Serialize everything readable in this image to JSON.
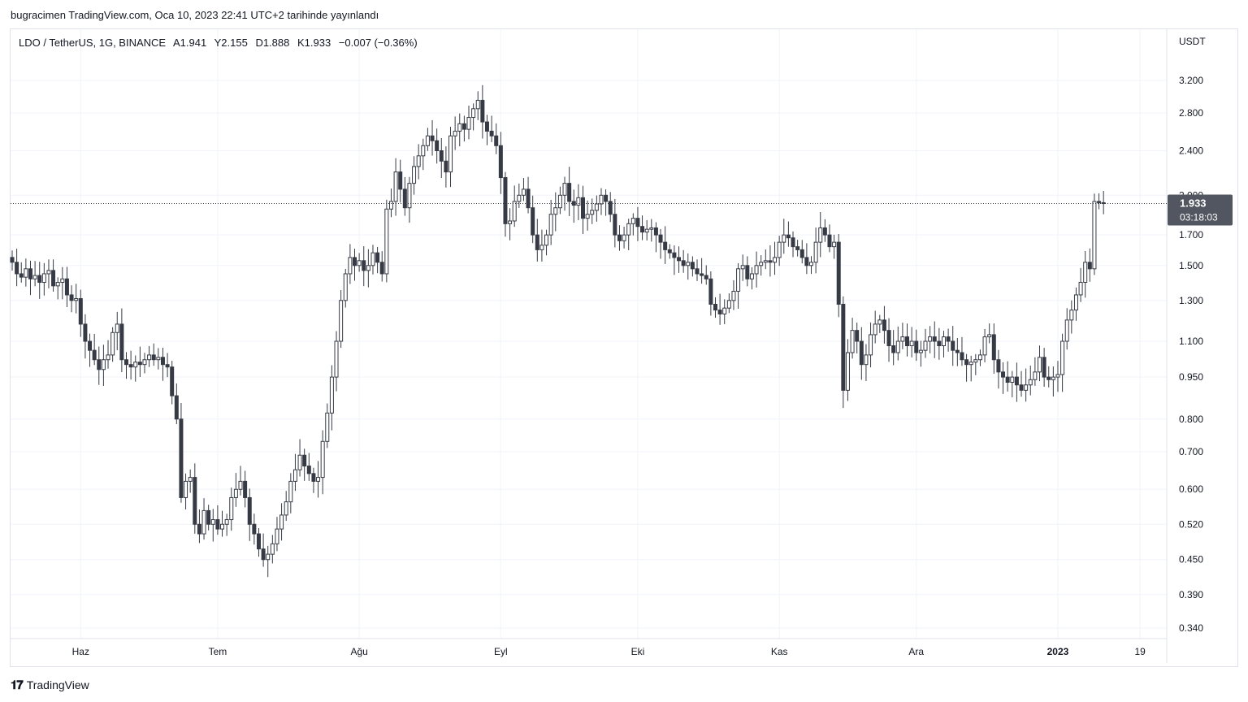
{
  "header": {
    "published": "bugracimen TradingView.com, Oca 10, 2023 22:41 UTC+2 tarihinde yayınlandı"
  },
  "legend": {
    "symbol": "LDO / TetherUS, 1G, BINANCE",
    "open": "A1.941",
    "high": "Y2.155",
    "low": "D1.888",
    "close": "K1.933",
    "change": "−0.007 (−0.36%)"
  },
  "price_axis": {
    "currency": "USDT",
    "last_price": "1.933",
    "countdown": "03:18:03"
  },
  "footer": {
    "brand": "TradingView"
  },
  "colors": {
    "bar": "#363a45",
    "bar_up_fill": "#ffffff",
    "grid": "#f0f3fa",
    "label_bg": "#525660",
    "text": "#131722"
  },
  "chart_data": {
    "type": "candlestick",
    "scale": "log",
    "ylim": [
      0.31,
      3.7
    ],
    "grid": true,
    "y_ticks": [
      "3.200",
      "2.800",
      "2.400",
      "2.000",
      "1.700",
      "1.500",
      "1.300",
      "1.100",
      "0.950",
      "0.800",
      "0.700",
      "0.600",
      "0.520",
      "0.450",
      "0.390",
      "0.340"
    ],
    "x_tick_labels": [
      {
        "label": "Haz",
        "day": 15,
        "bold": false
      },
      {
        "label": "Tem",
        "day": 45,
        "bold": false
      },
      {
        "label": "Ağu",
        "day": 76,
        "bold": false
      },
      {
        "label": "Eyl",
        "day": 107,
        "bold": false
      },
      {
        "label": "Eki",
        "day": 137,
        "bold": false
      },
      {
        "label": "Kas",
        "day": 168,
        "bold": false
      },
      {
        "label": "Ara",
        "day": 198,
        "bold": false
      },
      {
        "label": "2023",
        "day": 229,
        "bold": true
      },
      {
        "label": "19",
        "day": 247,
        "bold": false
      }
    ],
    "last_close": 1.933,
    "closes": [
      1.52,
      1.45,
      1.43,
      1.48,
      1.42,
      1.44,
      1.4,
      1.45,
      1.47,
      1.38,
      1.4,
      1.42,
      1.33,
      1.3,
      1.31,
      1.18,
      1.1,
      1.06,
      1.02,
      0.98,
      1.02,
      1.04,
      1.14,
      1.18,
      1.02,
      1.0,
      0.99,
      1.01,
      1.0,
      1.02,
      1.04,
      1.02,
      1.03,
      1.0,
      0.99,
      0.88,
      0.8,
      0.58,
      0.62,
      0.63,
      0.52,
      0.5,
      0.55,
      0.52,
      0.53,
      0.51,
      0.52,
      0.53,
      0.58,
      0.6,
      0.62,
      0.58,
      0.52,
      0.5,
      0.47,
      0.45,
      0.46,
      0.48,
      0.51,
      0.54,
      0.57,
      0.62,
      0.65,
      0.69,
      0.66,
      0.64,
      0.62,
      0.63,
      0.73,
      0.82,
      0.95,
      1.1,
      1.3,
      1.45,
      1.55,
      1.5,
      1.53,
      1.47,
      1.5,
      1.58,
      1.52,
      1.45,
      1.89,
      1.95,
      2.2,
      2.05,
      1.9,
      2.1,
      2.25,
      2.35,
      2.45,
      2.55,
      2.5,
      2.4,
      2.3,
      2.2,
      2.55,
      2.6,
      2.68,
      2.62,
      2.75,
      2.85,
      2.95,
      2.7,
      2.6,
      2.55,
      2.45,
      2.15,
      1.78,
      1.8,
      1.95,
      2.0,
      2.05,
      1.9,
      1.7,
      1.6,
      1.63,
      1.7,
      1.85,
      1.9,
      2.0,
      2.1,
      1.95,
      1.92,
      1.98,
      1.82,
      1.85,
      1.88,
      1.93,
      2.0,
      1.95,
      1.85,
      1.7,
      1.66,
      1.7,
      1.78,
      1.82,
      1.76,
      1.72,
      1.74,
      1.75,
      1.7,
      1.65,
      1.6,
      1.58,
      1.55,
      1.53,
      1.5,
      1.52,
      1.48,
      1.45,
      1.44,
      1.42,
      1.28,
      1.25,
      1.23,
      1.26,
      1.3,
      1.35,
      1.48,
      1.5,
      1.42,
      1.45,
      1.5,
      1.52,
      1.53,
      1.52,
      1.55,
      1.65,
      1.7,
      1.68,
      1.62,
      1.6,
      1.55,
      1.5,
      1.52,
      1.65,
      1.75,
      1.7,
      1.62,
      1.65,
      1.28,
      0.9,
      1.05,
      1.15,
      1.1,
      1.0,
      1.04,
      1.13,
      1.18,
      1.2,
      1.15,
      1.08,
      1.05,
      1.1,
      1.12,
      1.08,
      1.1,
      1.05,
      1.06,
      1.1,
      1.12,
      1.1,
      1.08,
      1.12,
      1.1,
      1.06,
      1.05,
      1.02,
      1.0,
      1.01,
      1.02,
      1.04,
      1.12,
      1.13,
      1.02,
      0.97,
      0.95,
      0.93,
      0.95,
      0.92,
      0.9,
      0.92,
      0.94,
      0.97,
      1.03,
      0.95,
      0.94,
      0.95,
      0.96,
      1.1,
      1.2,
      1.25,
      1.33,
      1.4,
      1.52,
      1.48,
      1.95,
      1.94,
      1.933
    ]
  }
}
